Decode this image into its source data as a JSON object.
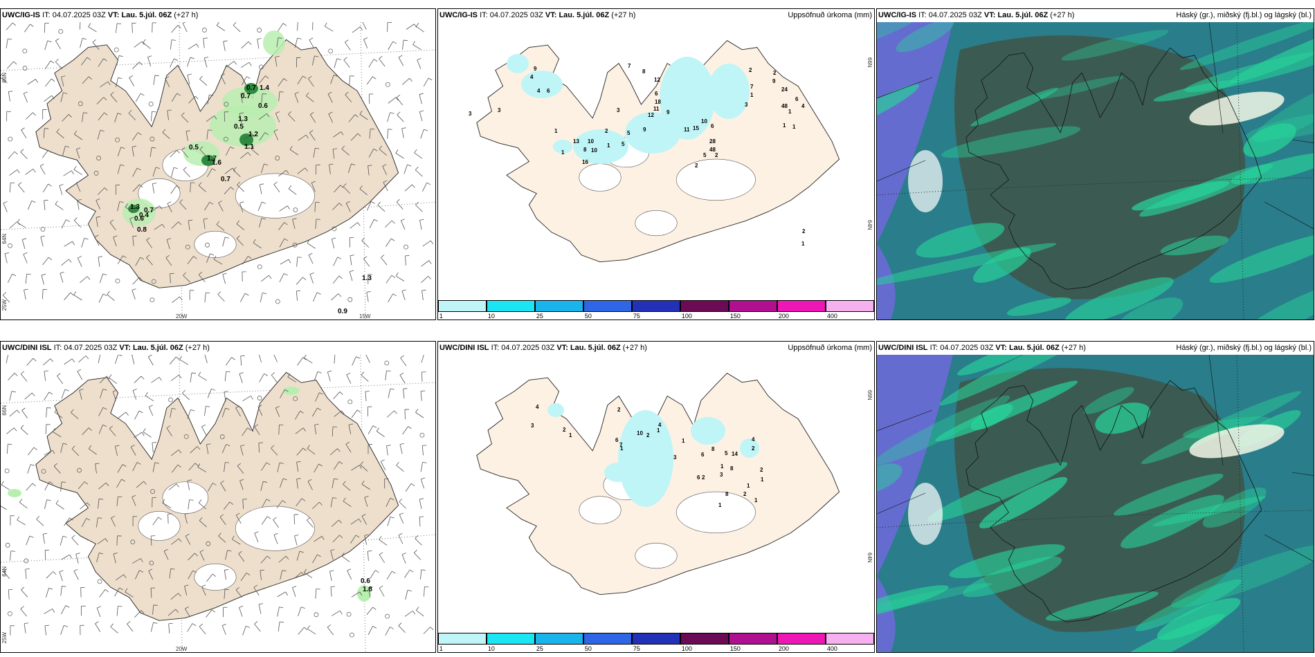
{
  "rows": [
    {
      "model": "UWC/IG-IS",
      "it_label": "IT:",
      "it": "04.07.2025 03Z",
      "vt_label": "VT:",
      "vt": "Lau. 5.júl. 06Z",
      "lead": "(+27 h)",
      "wind_values": [
        "0.7",
        "1.4",
        "0.7",
        "0.6",
        "1.3",
        "0.5",
        "1.2",
        "1.1",
        "0.5",
        "1.7",
        "1.6",
        "0.7",
        "1.3",
        "0.7",
        "0.4",
        "0.6",
        "0.8",
        "1.3",
        "0.9"
      ],
      "precip_values": [
        "9",
        "4",
        "6",
        "4",
        "3",
        "3",
        "1",
        "1",
        "2",
        "3",
        "12",
        "9",
        "5",
        "5",
        "13",
        "10",
        "8",
        "16",
        "10",
        "1",
        "7",
        "8",
        "12",
        "6",
        "18",
        "11",
        "9",
        "15",
        "11",
        "10",
        "6",
        "28",
        "48",
        "5",
        "2",
        "2",
        "2",
        "7",
        "2",
        "9",
        "1",
        "24",
        "6",
        "3",
        "48",
        "4",
        "1",
        "1",
        "1",
        "2",
        "1"
      ]
    },
    {
      "model": "UWC/DINI ISL",
      "it_label": "IT:",
      "it": "04.07.2025 03Z",
      "vt_label": "VT:",
      "vt": "Lau. 5.júl. 06Z",
      "lead": "(+27 h)",
      "wind_values": [
        "0.6",
        "1.8"
      ],
      "precip_values": [
        "4",
        "3",
        "2",
        "1",
        "2",
        "7",
        "4",
        "1",
        "2",
        "10",
        "6",
        "1",
        "3",
        "1",
        "8",
        "6",
        "5",
        "14",
        "1",
        "8",
        "3",
        "2",
        "6",
        "4",
        "2",
        "2",
        "1",
        "1",
        "2",
        "1",
        "8",
        "1"
      ]
    }
  ],
  "precip_title": "Uppsöfnuð úrkoma (mm)",
  "cloud_title": "Háský (gr.), miðský (fj.bl.) og lágský (bl.)",
  "colorbar": {
    "labels": [
      "1",
      "10",
      "25",
      "50",
      "75",
      "100",
      "150",
      "200",
      "400"
    ],
    "colors": [
      "#bff5f7",
      "#19e6f2",
      "#1ab4ec",
      "#2e66e6",
      "#2330b8",
      "#6b0a55",
      "#b0108f",
      "#ee17b5",
      "#f5b1ef"
    ]
  },
  "axes": {
    "lat_66": "66N",
    "lat_64": "64N",
    "lon_20": "20W",
    "lon_15": "15W",
    "lon_25": "25W",
    "lat_66_right": "66N",
    "lat_64_right": "64N"
  },
  "colors": {
    "land": "#eedfcc",
    "land_precip": "#fdf1e3",
    "glacier": "#ffffff",
    "green_light": "#b8efb0",
    "green_dark": "#2f8a40",
    "cyan_light": "#bff5f7",
    "cloud_dark": "#3c5a4f",
    "cloud_teal": "#2a7d8a",
    "cloud_blue": "#6b6ad6",
    "cloud_mint": "#28d39a"
  }
}
